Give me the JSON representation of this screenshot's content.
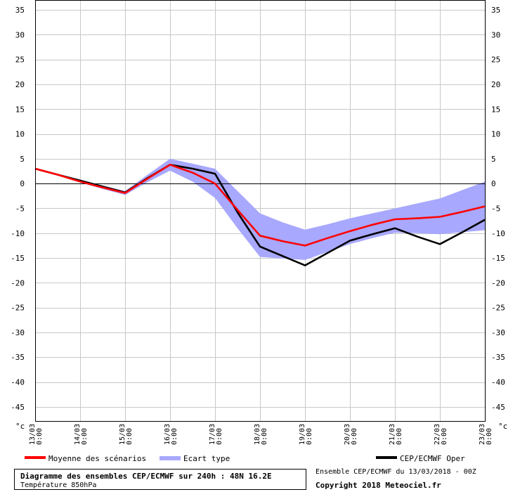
{
  "chart_data": {
    "type": "line",
    "title": "Diagramme des ensembles CEP/ECMWF sur 240h : 48N 16.2E",
    "subtitle": "Température 850hPa",
    "ylabel_left": "°c",
    "ylabel_right": "°c",
    "ylim": [
      -48,
      37
    ],
    "yticks": [
      35,
      30,
      25,
      20,
      15,
      10,
      5,
      0,
      -5,
      -10,
      -15,
      -20,
      -25,
      -30,
      -35,
      -40,
      -45
    ],
    "ytick_labels": [
      "35",
      "30",
      "25",
      "20",
      "15",
      "10",
      "5",
      "0",
      "-5",
      "-10",
      "-15",
      "-20",
      "-25",
      "-30",
      "-35",
      "-40",
      "-45"
    ],
    "grid": true,
    "x": [
      0,
      12,
      24,
      36,
      48,
      60,
      72,
      84,
      96,
      108,
      120,
      132,
      144,
      156,
      168,
      180,
      192,
      204,
      216,
      228,
      240
    ],
    "x_tick_labels": [
      {
        "date": "13/03",
        "time": "0:00"
      },
      {
        "date": "14/03",
        "time": "0:00"
      },
      {
        "date": "15/03",
        "time": "0:00"
      },
      {
        "date": "16/03",
        "time": "0:00"
      },
      {
        "date": "17/03",
        "time": "0:00"
      },
      {
        "date": "18/03",
        "time": "0:00"
      },
      {
        "date": "19/03",
        "time": "0:00"
      },
      {
        "date": "20/03",
        "time": "0:00"
      },
      {
        "date": "21/03",
        "time": "0:00"
      },
      {
        "date": "22/03",
        "time": "0:00"
      },
      {
        "date": "23/03",
        "time": "0:00"
      }
    ],
    "series": [
      {
        "name": "Moyenne des scénarios",
        "color": "#ff0000",
        "values": [
          3,
          1.8,
          0.4,
          -0.8,
          -1.9,
          1.0,
          3.8,
          2.2,
          0.0,
          -5.3,
          -10.5,
          -11.6,
          -12.5,
          -11.0,
          -9.6,
          -8.3,
          -7.2,
          -7.0,
          -6.7,
          -5.7,
          -4.6
        ]
      },
      {
        "name": "CEP/ECMWF Oper",
        "color": "#000000",
        "values": [
          3,
          1.8,
          0.6,
          -0.6,
          -1.8,
          1.1,
          3.8,
          3.0,
          2.0,
          -5.8,
          -12.7,
          -14.6,
          -16.5,
          -14.0,
          -11.5,
          -10.2,
          -9.0,
          -10.7,
          -12.2,
          -9.8,
          -7.3
        ]
      }
    ],
    "band": {
      "name": "Ecart type",
      "color": "#a8a8ff",
      "upper": [
        3,
        1.9,
        0.8,
        -0.4,
        -1.5,
        1.8,
        5.0,
        4.0,
        3.0,
        -1.5,
        -6.0,
        -7.8,
        -9.3,
        -8.2,
        -7.0,
        -6.0,
        -5.0,
        -4.0,
        -3.0,
        -1.3,
        0.4
      ],
      "lower": [
        3,
        1.7,
        0.2,
        -1.1,
        -2.3,
        0.3,
        2.6,
        0.4,
        -2.9,
        -9.0,
        -14.8,
        -15.1,
        -15.4,
        -13.8,
        -12.2,
        -11.0,
        -9.9,
        -10.0,
        -10.2,
        -9.8,
        -9.4
      ]
    },
    "legend": [
      {
        "label": "Moyenne des scénarios",
        "color": "#ff0000",
        "kind": "line"
      },
      {
        "label": "Ecart type",
        "color": "#a8a8ff",
        "kind": "band"
      },
      {
        "label": "CEP/ECMWF Oper",
        "color": "#000000",
        "kind": "line"
      }
    ],
    "legend_position": "bottom"
  },
  "footer": {
    "title": "Diagramme des ensembles CEP/ECMWF sur 240h : 48N 16.2E",
    "subtitle": "Température 850hPa",
    "run_info": "Ensemble CEP/ECMWF du 13/03/2018 - 00Z",
    "copyright": "Copyright 2018 Meteociel.fr"
  }
}
